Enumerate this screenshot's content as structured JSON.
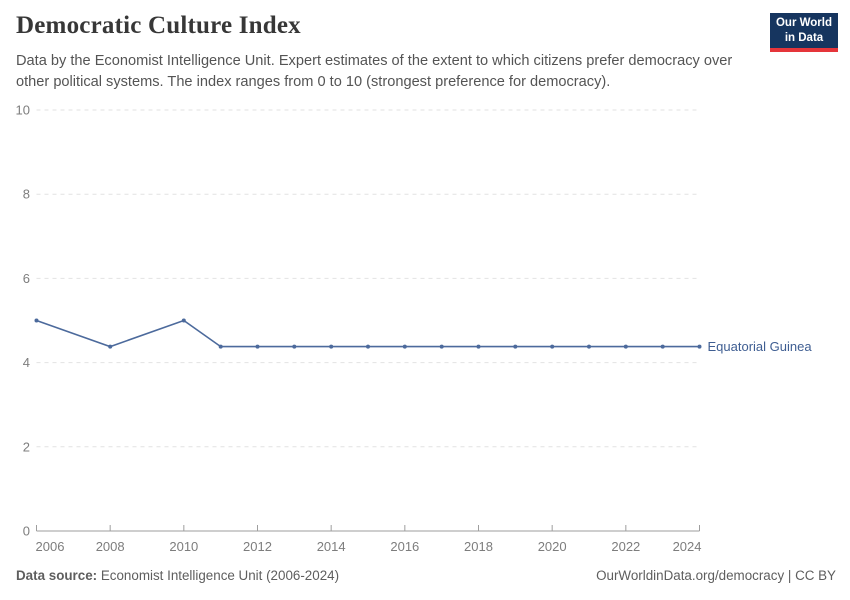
{
  "header": {
    "title": "Democratic Culture Index",
    "subtitle": "Data by the Economist Intelligence Unit. Expert estimates of the extent to which citizens prefer democracy over other political systems. The index ranges from 0 to 10 (strongest preference for democracy)."
  },
  "logo": {
    "line1": "Our World",
    "line2": "in Data",
    "bg_color": "#16355f",
    "accent_color": "#e5353a"
  },
  "chart_data": {
    "type": "line",
    "title": "Democratic Culture Index",
    "xlabel": "",
    "ylabel": "",
    "xlim": [
      2006,
      2024
    ],
    "ylim": [
      0,
      10
    ],
    "x_ticks": [
      2006,
      2008,
      2010,
      2012,
      2014,
      2016,
      2018,
      2020,
      2022,
      2024
    ],
    "y_ticks": [
      0,
      2,
      4,
      6,
      8,
      10
    ],
    "grid": "horizontal-dashed",
    "legend_position": "end-of-line-label",
    "series": [
      {
        "name": "Equatorial Guinea",
        "color": "#4c6a9c",
        "x": [
          2006,
          2008,
          2010,
          2011,
          2012,
          2013,
          2014,
          2015,
          2016,
          2017,
          2018,
          2019,
          2020,
          2021,
          2022,
          2023,
          2024
        ],
        "values": [
          5.0,
          4.38,
          5.0,
          4.38,
          4.38,
          4.38,
          4.38,
          4.38,
          4.38,
          4.38,
          4.38,
          4.38,
          4.38,
          4.38,
          4.38,
          4.38,
          4.38
        ]
      }
    ]
  },
  "footer": {
    "datasource_label": "Data source:",
    "datasource_value": "Economist Intelligence Unit (2006-2024)",
    "attribution": "OurWorldinData.org/democracy | CC BY"
  }
}
